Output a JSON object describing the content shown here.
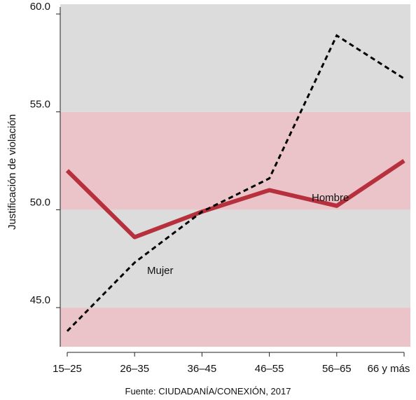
{
  "chart_data": {
    "type": "line",
    "categories": [
      "15–25",
      "26–35",
      "36–45",
      "46–55",
      "56–65",
      "66 y más"
    ],
    "series": [
      {
        "name": "Hombre",
        "values": [
          52.0,
          48.6,
          49.9,
          51.0,
          50.2,
          52.5
        ],
        "color": "#B7303D",
        "style": "solid"
      },
      {
        "name": "Mujer",
        "values": [
          43.8,
          47.3,
          49.9,
          51.6,
          58.9,
          56.7
        ],
        "color": "#000000",
        "style": "dashed"
      }
    ],
    "ylabel": "Justificación de violación",
    "xlabel": "",
    "title": "",
    "ylim": [
      43.0,
      60.5
    ],
    "yticks": [
      45.0,
      50.0,
      55.0,
      60.0
    ],
    "ytick_labels": [
      "45.0",
      "50.0",
      "55.0",
      "60.0"
    ],
    "bands": [
      {
        "from": 43.0,
        "to": 45.0,
        "color": "#EAC4C8"
      },
      {
        "from": 45.0,
        "to": 50.0,
        "color": "#DCDCDC"
      },
      {
        "from": 50.0,
        "to": 55.0,
        "color": "#EAC4C8"
      },
      {
        "from": 55.0,
        "to": 60.5,
        "color": "#DCDCDC"
      }
    ],
    "annotations": [
      {
        "text": "Hombre",
        "series": "Hombre"
      },
      {
        "text": "Mujer",
        "series": "Mujer"
      }
    ],
    "source": "Fuente: CIUDADANÍA/CONEXIÓN, 2017",
    "grid": false
  }
}
